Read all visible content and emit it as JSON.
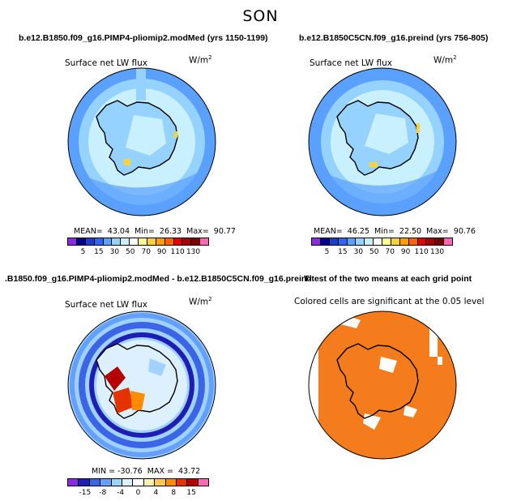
{
  "figure": {
    "title": "SON"
  },
  "colors": {
    "flux_levels": [
      "#8a2be2",
      "#00008b",
      "#1e3cc8",
      "#3264f0",
      "#5aa0ff",
      "#96d2ff",
      "#c8f0ff",
      "#ffffff",
      "#ffff96",
      "#ffd23c",
      "#ffa000",
      "#ff6400",
      "#e60000",
      "#aa0000",
      "#780000",
      "#ff69b4"
    ],
    "diff_levels": [
      "#8a2be2",
      "#1e1eb4",
      "#3c64e6",
      "#64a0ff",
      "#a0d2ff",
      "#dcf0ff",
      "#ffffff",
      "#fff0b4",
      "#ffc850",
      "#ff8c00",
      "#e63200",
      "#b40000",
      "#ff69b4"
    ],
    "ttest_fill": "#f57c1c"
  },
  "panels": {
    "top_left": {
      "title": "b.e12.B1850.f09_g16.PIMP4-pliomip2.modMed (yrs 1150-1199)",
      "variable": "Surface net LW flux",
      "units_base": "W/m",
      "units_exp": "2",
      "stats": "MEAN=  43.04  Min=  26.33  Max=  90.77",
      "ticks": [
        "5",
        "15",
        "30",
        "50",
        "70",
        "90",
        "110",
        "130"
      ]
    },
    "top_right": {
      "title": "b.e12.B1850C5CN.f09_g16.preind (yrs 756-805)",
      "variable": "Surface net LW flux",
      "units_base": "W/m",
      "units_exp": "2",
      "stats": "MEAN=  46.25  Min=  22.50  Max=  90.76",
      "ticks": [
        "5",
        "15",
        "30",
        "50",
        "70",
        "90",
        "110",
        "130"
      ]
    },
    "bottom_left": {
      "title": ".B1850.f09_g16.PIMP4-pliomip2.modMed - b.e12.B1850C5CN.f09_g16.preind",
      "variable": "Surface net LW flux",
      "units_base": "W/m",
      "units_exp": "2",
      "stats": "MIN = -30.76  MAX =  43.72",
      "ticks": [
        "-15",
        "-8",
        "-4",
        "0",
        "4",
        "8",
        "15"
      ]
    },
    "bottom_right": {
      "title": "T-test of the two means at each grid point",
      "variable": "Colored cells are significant at the 0.05 level"
    }
  }
}
